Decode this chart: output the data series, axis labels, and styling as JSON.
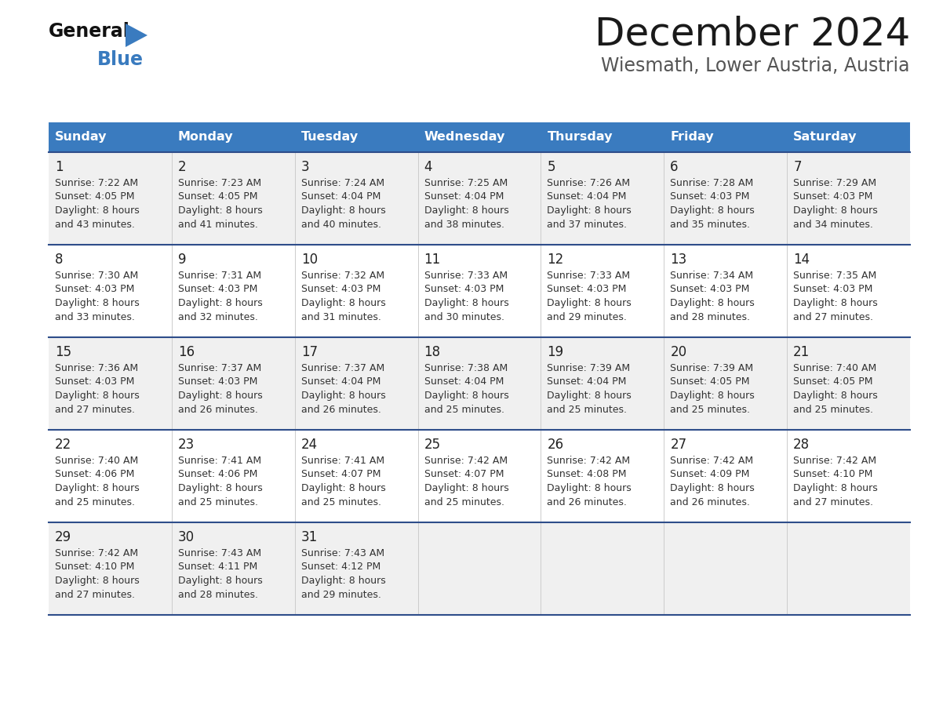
{
  "title": "December 2024",
  "subtitle": "Wiesmath, Lower Austria, Austria",
  "header_color": "#3a7bbf",
  "header_text_color": "#ffffff",
  "cell_bg_odd": "#f0f0f0",
  "cell_bg_even": "#ffffff",
  "day_text_color": "#222222",
  "info_text_color": "#333333",
  "border_color": "#2e4d8a",
  "days_of_week": [
    "Sunday",
    "Monday",
    "Tuesday",
    "Wednesday",
    "Thursday",
    "Friday",
    "Saturday"
  ],
  "weeks": [
    [
      {
        "day": "1",
        "sunrise": "7:22 AM",
        "sunset": "4:05 PM",
        "daylight_h": "8 hours",
        "daylight_m": "43 minutes."
      },
      {
        "day": "2",
        "sunrise": "7:23 AM",
        "sunset": "4:05 PM",
        "daylight_h": "8 hours",
        "daylight_m": "41 minutes."
      },
      {
        "day": "3",
        "sunrise": "7:24 AM",
        "sunset": "4:04 PM",
        "daylight_h": "8 hours",
        "daylight_m": "40 minutes."
      },
      {
        "day": "4",
        "sunrise": "7:25 AM",
        "sunset": "4:04 PM",
        "daylight_h": "8 hours",
        "daylight_m": "38 minutes."
      },
      {
        "day": "5",
        "sunrise": "7:26 AM",
        "sunset": "4:04 PM",
        "daylight_h": "8 hours",
        "daylight_m": "37 minutes."
      },
      {
        "day": "6",
        "sunrise": "7:28 AM",
        "sunset": "4:03 PM",
        "daylight_h": "8 hours",
        "daylight_m": "35 minutes."
      },
      {
        "day": "7",
        "sunrise": "7:29 AM",
        "sunset": "4:03 PM",
        "daylight_h": "8 hours",
        "daylight_m": "34 minutes."
      }
    ],
    [
      {
        "day": "8",
        "sunrise": "7:30 AM",
        "sunset": "4:03 PM",
        "daylight_h": "8 hours",
        "daylight_m": "33 minutes."
      },
      {
        "day": "9",
        "sunrise": "7:31 AM",
        "sunset": "4:03 PM",
        "daylight_h": "8 hours",
        "daylight_m": "32 minutes."
      },
      {
        "day": "10",
        "sunrise": "7:32 AM",
        "sunset": "4:03 PM",
        "daylight_h": "8 hours",
        "daylight_m": "31 minutes."
      },
      {
        "day": "11",
        "sunrise": "7:33 AM",
        "sunset": "4:03 PM",
        "daylight_h": "8 hours",
        "daylight_m": "30 minutes."
      },
      {
        "day": "12",
        "sunrise": "7:33 AM",
        "sunset": "4:03 PM",
        "daylight_h": "8 hours",
        "daylight_m": "29 minutes."
      },
      {
        "day": "13",
        "sunrise": "7:34 AM",
        "sunset": "4:03 PM",
        "daylight_h": "8 hours",
        "daylight_m": "28 minutes."
      },
      {
        "day": "14",
        "sunrise": "7:35 AM",
        "sunset": "4:03 PM",
        "daylight_h": "8 hours",
        "daylight_m": "27 minutes."
      }
    ],
    [
      {
        "day": "15",
        "sunrise": "7:36 AM",
        "sunset": "4:03 PM",
        "daylight_h": "8 hours",
        "daylight_m": "27 minutes."
      },
      {
        "day": "16",
        "sunrise": "7:37 AM",
        "sunset": "4:03 PM",
        "daylight_h": "8 hours",
        "daylight_m": "26 minutes."
      },
      {
        "day": "17",
        "sunrise": "7:37 AM",
        "sunset": "4:04 PM",
        "daylight_h": "8 hours",
        "daylight_m": "26 minutes."
      },
      {
        "day": "18",
        "sunrise": "7:38 AM",
        "sunset": "4:04 PM",
        "daylight_h": "8 hours",
        "daylight_m": "25 minutes."
      },
      {
        "day": "19",
        "sunrise": "7:39 AM",
        "sunset": "4:04 PM",
        "daylight_h": "8 hours",
        "daylight_m": "25 minutes."
      },
      {
        "day": "20",
        "sunrise": "7:39 AM",
        "sunset": "4:05 PM",
        "daylight_h": "8 hours",
        "daylight_m": "25 minutes."
      },
      {
        "day": "21",
        "sunrise": "7:40 AM",
        "sunset": "4:05 PM",
        "daylight_h": "8 hours",
        "daylight_m": "25 minutes."
      }
    ],
    [
      {
        "day": "22",
        "sunrise": "7:40 AM",
        "sunset": "4:06 PM",
        "daylight_h": "8 hours",
        "daylight_m": "25 minutes."
      },
      {
        "day": "23",
        "sunrise": "7:41 AM",
        "sunset": "4:06 PM",
        "daylight_h": "8 hours",
        "daylight_m": "25 minutes."
      },
      {
        "day": "24",
        "sunrise": "7:41 AM",
        "sunset": "4:07 PM",
        "daylight_h": "8 hours",
        "daylight_m": "25 minutes."
      },
      {
        "day": "25",
        "sunrise": "7:42 AM",
        "sunset": "4:07 PM",
        "daylight_h": "8 hours",
        "daylight_m": "25 minutes."
      },
      {
        "day": "26",
        "sunrise": "7:42 AM",
        "sunset": "4:08 PM",
        "daylight_h": "8 hours",
        "daylight_m": "26 minutes."
      },
      {
        "day": "27",
        "sunrise": "7:42 AM",
        "sunset": "4:09 PM",
        "daylight_h": "8 hours",
        "daylight_m": "26 minutes."
      },
      {
        "day": "28",
        "sunrise": "7:42 AM",
        "sunset": "4:10 PM",
        "daylight_h": "8 hours",
        "daylight_m": "27 minutes."
      }
    ],
    [
      {
        "day": "29",
        "sunrise": "7:42 AM",
        "sunset": "4:10 PM",
        "daylight_h": "8 hours",
        "daylight_m": "27 minutes."
      },
      {
        "day": "30",
        "sunrise": "7:43 AM",
        "sunset": "4:11 PM",
        "daylight_h": "8 hours",
        "daylight_m": "28 minutes."
      },
      {
        "day": "31",
        "sunrise": "7:43 AM",
        "sunset": "4:12 PM",
        "daylight_h": "8 hours",
        "daylight_m": "29 minutes."
      },
      null,
      null,
      null,
      null
    ]
  ]
}
